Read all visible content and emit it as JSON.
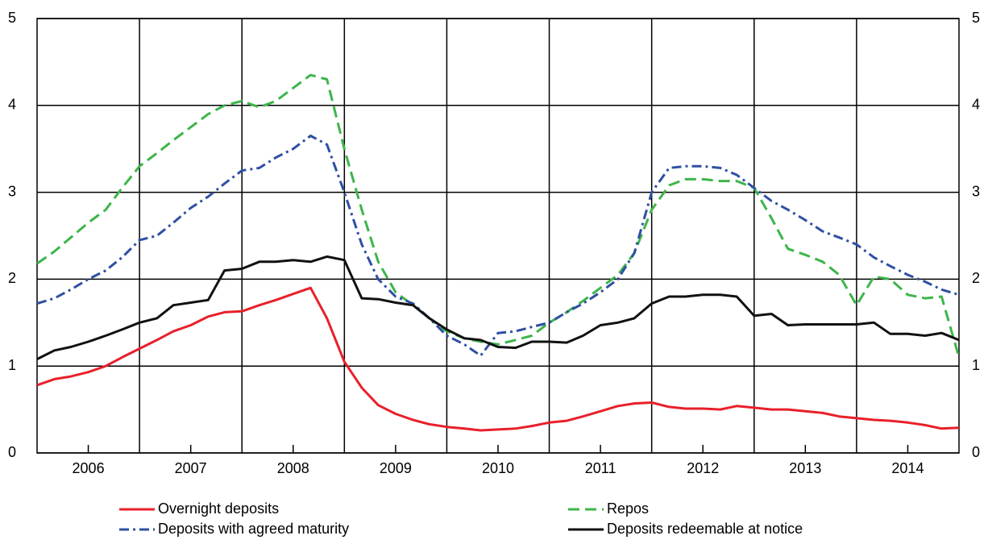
{
  "chart_data": {
    "type": "line",
    "x": [
      2006,
      2006.17,
      2006.33,
      2006.5,
      2006.67,
      2006.83,
      2007,
      2007.17,
      2007.33,
      2007.5,
      2007.67,
      2007.83,
      2008,
      2008.17,
      2008.33,
      2008.5,
      2008.67,
      2008.83,
      2009,
      2009.17,
      2009.33,
      2009.5,
      2009.67,
      2009.83,
      2010,
      2010.17,
      2010.33,
      2010.5,
      2010.67,
      2010.83,
      2011,
      2011.17,
      2011.33,
      2011.5,
      2011.67,
      2011.83,
      2012,
      2012.17,
      2012.33,
      2012.5,
      2012.67,
      2012.83,
      2013,
      2013.17,
      2013.33,
      2013.5,
      2013.67,
      2013.83,
      2014,
      2014.17,
      2014.33,
      2014.5,
      2014.67,
      2014.83,
      2015
    ],
    "xlim": [
      2006,
      2015
    ],
    "xticks": [
      {
        "value": 2006.5,
        "label": "2006"
      },
      {
        "value": 2007.5,
        "label": "2007"
      },
      {
        "value": 2008.5,
        "label": "2008"
      },
      {
        "value": 2009.5,
        "label": "2009"
      },
      {
        "value": 2010.5,
        "label": "2010"
      },
      {
        "value": 2011.5,
        "label": "2011"
      },
      {
        "value": 2012.5,
        "label": "2012"
      },
      {
        "value": 2013.5,
        "label": "2013"
      },
      {
        "value": 2014.5,
        "label": "2014"
      }
    ],
    "xgrid": [
      2007,
      2008,
      2009,
      2010,
      2011,
      2012,
      2013,
      2014
    ],
    "ylim": [
      0,
      5
    ],
    "yticks": [
      0,
      1,
      2,
      3,
      4,
      5
    ],
    "grid": true,
    "series": [
      {
        "name": "Overnight deposits",
        "color": "#e8202a",
        "dash": "solid",
        "values": [
          0.78,
          0.85,
          0.88,
          0.93,
          1.0,
          1.1,
          1.2,
          1.3,
          1.4,
          1.47,
          1.57,
          1.62,
          1.63,
          1.7,
          1.76,
          1.83,
          1.9,
          1.55,
          1.05,
          0.75,
          0.55,
          0.45,
          0.38,
          0.33,
          0.3,
          0.28,
          0.26,
          0.27,
          0.28,
          0.31,
          0.35,
          0.37,
          0.42,
          0.48,
          0.54,
          0.57,
          0.58,
          0.53,
          0.51,
          0.51,
          0.5,
          0.54,
          0.52,
          0.5,
          0.5,
          0.48,
          0.46,
          0.42,
          0.4,
          0.38,
          0.37,
          0.35,
          0.32,
          0.28,
          0.29
        ]
      },
      {
        "name": "Repos",
        "color": "#3db54a",
        "dash": "dashed",
        "values": [
          2.18,
          2.32,
          2.48,
          2.65,
          2.8,
          3.05,
          3.3,
          3.45,
          3.6,
          3.75,
          3.9,
          4.0,
          4.05,
          3.98,
          4.05,
          4.2,
          4.35,
          4.3,
          3.5,
          2.8,
          2.2,
          1.85,
          1.7,
          1.55,
          1.4,
          1.32,
          1.28,
          1.25,
          1.3,
          1.35,
          1.5,
          1.62,
          1.75,
          1.9,
          2.05,
          2.3,
          2.8,
          3.08,
          3.15,
          3.15,
          3.13,
          3.13,
          3.05,
          2.7,
          2.35,
          2.28,
          2.2,
          2.05,
          1.7,
          2.03,
          2.0,
          1.82,
          1.78,
          1.8,
          1.1
        ]
      },
      {
        "name": "Deposits with agreed maturity",
        "color": "#2f4fa3",
        "dash": "dashdot",
        "values": [
          1.72,
          1.78,
          1.88,
          2.0,
          2.1,
          2.25,
          2.45,
          2.5,
          2.65,
          2.82,
          2.95,
          3.1,
          3.25,
          3.28,
          3.4,
          3.5,
          3.65,
          3.55,
          3.0,
          2.4,
          2.0,
          1.8,
          1.72,
          1.55,
          1.35,
          1.25,
          1.12,
          1.38,
          1.4,
          1.45,
          1.5,
          1.62,
          1.72,
          1.85,
          2.0,
          2.3,
          3.0,
          3.28,
          3.3,
          3.3,
          3.28,
          3.2,
          3.05,
          2.9,
          2.8,
          2.68,
          2.55,
          2.48,
          2.4,
          2.25,
          2.15,
          2.05,
          1.97,
          1.88,
          1.82
        ]
      },
      {
        "name": "Deposits redeemable at notice",
        "color": "#111111",
        "dash": "solid",
        "values": [
          1.08,
          1.18,
          1.22,
          1.28,
          1.35,
          1.42,
          1.5,
          1.55,
          1.7,
          1.73,
          1.76,
          2.1,
          2.12,
          2.2,
          2.2,
          2.22,
          2.2,
          2.26,
          2.22,
          1.78,
          1.77,
          1.73,
          1.7,
          1.55,
          1.42,
          1.32,
          1.3,
          1.22,
          1.21,
          1.28,
          1.28,
          1.27,
          1.35,
          1.47,
          1.5,
          1.55,
          1.72,
          1.8,
          1.8,
          1.82,
          1.82,
          1.8,
          1.58,
          1.6,
          1.47,
          1.48,
          1.48,
          1.48,
          1.48,
          1.5,
          1.37,
          1.37,
          1.35,
          1.38,
          1.3
        ]
      }
    ]
  }
}
